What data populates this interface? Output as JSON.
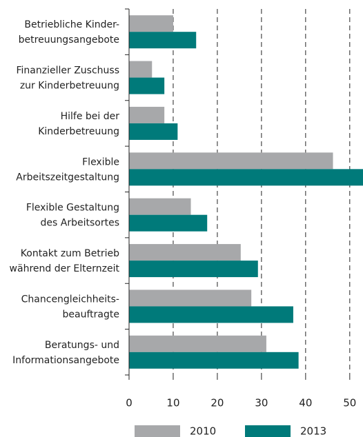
{
  "chart_data": {
    "type": "hbar",
    "categories": [
      [
        "Betriebliche Kinder-",
        "betreuungsangebote"
      ],
      [
        "Finanzieller Zuschuss",
        "zur Kinderbetreuung"
      ],
      [
        "Hilfe bei der",
        "Kinderbetreuung"
      ],
      [
        "Flexible",
        "Arbeitszeitgestaltung"
      ],
      [
        "Flexible Gestaltung",
        "des Arbeitsortes"
      ],
      [
        "Kontakt zum Betrieb",
        "während der Elternzeit"
      ],
      [
        "Chancengleichheits-",
        "beauftragte"
      ],
      [
        "Beratungs- und",
        "Informationsangebote"
      ]
    ],
    "series": [
      {
        "name": "2010",
        "color": "#a7a8aa",
        "values": [
          10,
          5.2,
          8,
          46.2,
          14,
          25.3,
          27.7,
          31.1
        ]
      },
      {
        "name": "2013",
        "color": "#007a7a",
        "values": [
          15.2,
          8,
          11,
          53,
          17.7,
          29.2,
          37.2,
          38.4
        ]
      }
    ],
    "xlim": [
      0,
      53
    ],
    "xticks": [
      0,
      10,
      20,
      30,
      40,
      50
    ],
    "grid": true
  }
}
